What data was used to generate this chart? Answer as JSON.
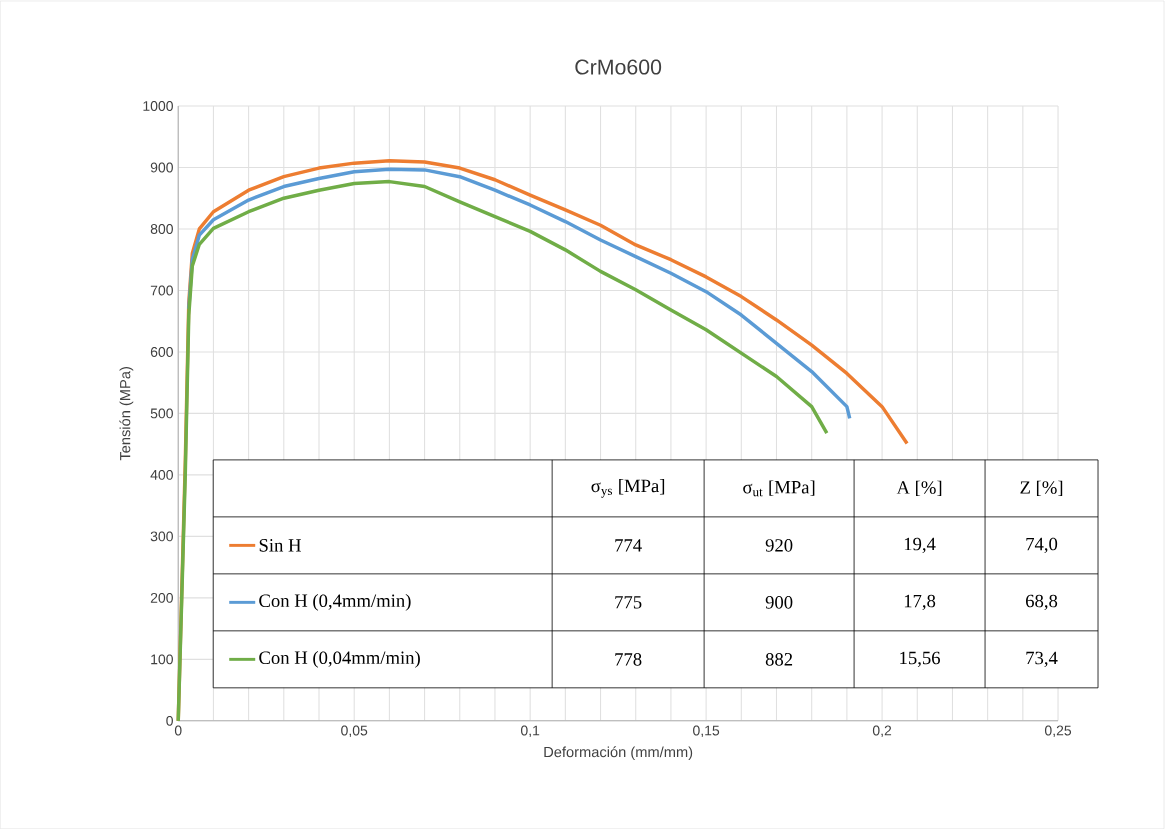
{
  "chart_data": {
    "type": "line",
    "title": "CrMo600",
    "xlabel": "Deformación (mm/mm)",
    "ylabel": "Tensión (MPa)",
    "xlim": [
      0,
      0.25
    ],
    "ylim": [
      0,
      1000
    ],
    "xticks": [
      0,
      {
        "value": 0.01,
        "label": null
      },
      {
        "value": 0.02,
        "label": null
      },
      {
        "value": 0.03,
        "label": null
      },
      {
        "value": 0.04,
        "label": null
      },
      {
        "value": 0.05,
        "label": "0,05"
      },
      {
        "value": 0.06,
        "label": null
      },
      {
        "value": 0.07,
        "label": null
      },
      {
        "value": 0.08,
        "label": null
      },
      {
        "value": 0.09,
        "label": null
      },
      {
        "value": 0.1,
        "label": "0,1"
      },
      {
        "value": 0.11,
        "label": null
      },
      {
        "value": 0.12,
        "label": null
      },
      {
        "value": 0.13,
        "label": null
      },
      {
        "value": 0.14,
        "label": null
      },
      {
        "value": 0.15,
        "label": "0,15"
      },
      {
        "value": 0.16,
        "label": null
      },
      {
        "value": 0.17,
        "label": null
      },
      {
        "value": 0.18,
        "label": null
      },
      {
        "value": 0.19,
        "label": null
      },
      {
        "value": 0.2,
        "label": "0,2"
      },
      {
        "value": 0.21,
        "label": null
      },
      {
        "value": 0.22,
        "label": null
      },
      {
        "value": 0.23,
        "label": null
      },
      {
        "value": 0.24,
        "label": null
      },
      {
        "value": 0.25,
        "label": "0,25"
      }
    ],
    "yticks": [
      0,
      100,
      200,
      300,
      400,
      500,
      600,
      700,
      800,
      900,
      1000
    ],
    "grid": true,
    "legend": "bottom",
    "marker": "none",
    "series": [
      {
        "name": "Sin H",
        "color": "#ed7d31",
        "x": [
          0,
          0.002,
          0.003,
          0.004,
          0.006,
          0.01,
          0.02,
          0.03,
          0.04,
          0.05,
          0.06,
          0.07,
          0.08,
          0.09,
          0.1,
          0.11,
          0.12,
          0.13,
          0.14,
          0.15,
          0.16,
          0.17,
          0.18,
          0.19,
          0.2,
          0.2071
        ],
        "values": [
          0,
          420,
          680,
          760,
          800,
          828,
          863,
          885,
          899,
          907,
          911,
          909,
          899,
          880,
          855,
          831,
          806,
          774,
          750,
          722,
          690,
          652,
          611,
          565,
          511,
          451
        ]
      },
      {
        "name": "Con H (0,4mm/min)",
        "color": "#5b9bd5",
        "x": [
          0.003,
          0.004,
          0.006,
          0.01,
          0.02,
          0.03,
          0.04,
          0.05,
          0.06,
          0.07,
          0.08,
          0.09,
          0.1,
          0.11,
          0.12,
          0.13,
          0.14,
          0.15,
          0.16,
          0.17,
          0.18,
          0.19,
          0.1908
        ],
        "values": [
          670,
          750,
          790,
          815,
          847,
          869,
          882,
          893,
          897,
          896,
          885,
          863,
          839,
          812,
          782,
          755,
          728,
          698,
          660,
          614,
          568,
          511,
          492
        ]
      },
      {
        "name": "Con H (0,04mm/min)",
        "color": "#70ad47",
        "x": [
          0,
          0.002,
          0.003,
          0.004,
          0.006,
          0.01,
          0.02,
          0.03,
          0.04,
          0.05,
          0.06,
          0.07,
          0.08,
          0.09,
          0.1,
          0.11,
          0.12,
          0.13,
          0.14,
          0.15,
          0.16,
          0.17,
          0.18,
          0.1843
        ],
        "values": [
          0,
          400,
          660,
          740,
          775,
          801,
          828,
          850,
          863,
          874,
          877,
          869,
          844,
          820,
          796,
          766,
          731,
          701,
          668,
          636,
          598,
          560,
          511,
          468
        ]
      }
    ],
    "annotations": [
      "σ$_{ys}$ [MPa]",
      "σ$_{ut}$ [MPa]",
      "A [%]",
      "Z [%]",
      "774",
      "920",
      "19,4",
      "74,0",
      "775",
      "900",
      "17,8",
      "68,8",
      "778",
      "882",
      "15,56",
      "73,4"
    ]
  }
}
